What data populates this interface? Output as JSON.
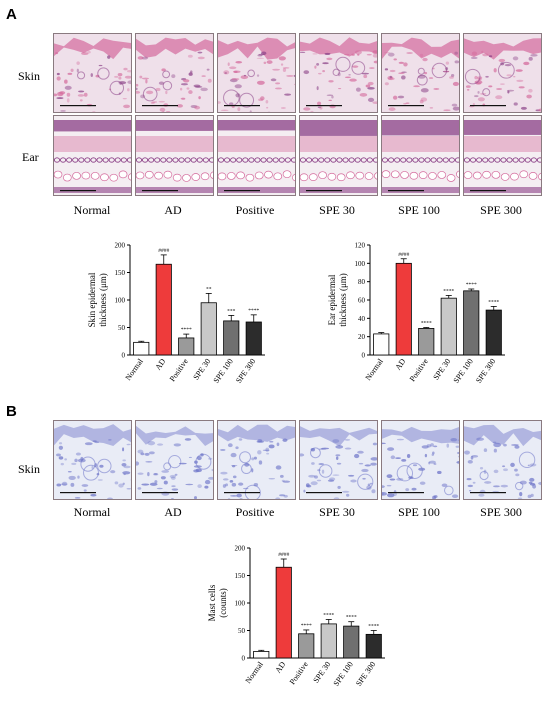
{
  "panels": {
    "a": {
      "label": "A",
      "rows": [
        "Skin",
        "Ear"
      ],
      "groups": [
        "Normal",
        "AD",
        "Positive",
        "SPE 30",
        "SPE 100",
        "SPE 300"
      ]
    },
    "b": {
      "label": "B",
      "rows": [
        "Skin"
      ],
      "groups": [
        "Normal",
        "AD",
        "Positive",
        "SPE 30",
        "SPE 100",
        "SPE 300"
      ]
    }
  },
  "colors": {
    "he_bg": "#efe0ea",
    "he_pink": "#d46a9c",
    "he_purple": "#8a3f86",
    "tb_bg": "#e9ecf6",
    "tb_blue": "#6d74c8",
    "bar_normal": "#ffffff",
    "bar_ad": "#ee3b3b",
    "bar_positive": "#9a9a9a",
    "bar_spe30": "#c8c8c8",
    "bar_spe100": "#707070",
    "bar_spe300": "#2c2c2c"
  },
  "chart_data": [
    {
      "type": "bar",
      "ylabel": "Skin epidermal thickness (μm)",
      "categories": [
        "Normal",
        "AD",
        "Positive",
        "SPE 30",
        "SPE 100",
        "SPE 300"
      ],
      "values": [
        23,
        165,
        31,
        95,
        62,
        60
      ],
      "errors": [
        2,
        17,
        7,
        17,
        10,
        13
      ],
      "annotations": [
        "",
        "####",
        "****",
        "**",
        "***",
        "****"
      ],
      "yticks": [
        0,
        50,
        100,
        150,
        200
      ],
      "ylim": [
        0,
        200
      ]
    },
    {
      "type": "bar",
      "ylabel": "Ear epidermal thickness (μm)",
      "categories": [
        "Normal",
        "AD",
        "Positive",
        "SPE 30",
        "SPE 100",
        "SPE 300"
      ],
      "values": [
        23,
        100,
        29,
        62,
        70,
        49
      ],
      "errors": [
        1.5,
        5,
        1,
        3,
        2,
        4
      ],
      "annotations": [
        "",
        "####",
        "****",
        "****",
        "****",
        "****"
      ],
      "yticks": [
        0,
        20,
        40,
        60,
        80,
        100,
        120
      ],
      "ylim": [
        0,
        120
      ]
    },
    {
      "type": "bar",
      "ylabel": "Mast cells (counts)",
      "categories": [
        "Normal",
        "AD",
        "Positive",
        "SPE 30",
        "SPE 100",
        "SPE 300"
      ],
      "values": [
        12,
        165,
        44,
        62,
        58,
        43
      ],
      "errors": [
        2,
        15,
        7,
        8,
        8,
        7
      ],
      "annotations": [
        "",
        "####",
        "****",
        "****",
        "****",
        "****"
      ],
      "yticks": [
        0,
        50,
        100,
        150,
        200
      ],
      "ylim": [
        0,
        200
      ]
    }
  ]
}
